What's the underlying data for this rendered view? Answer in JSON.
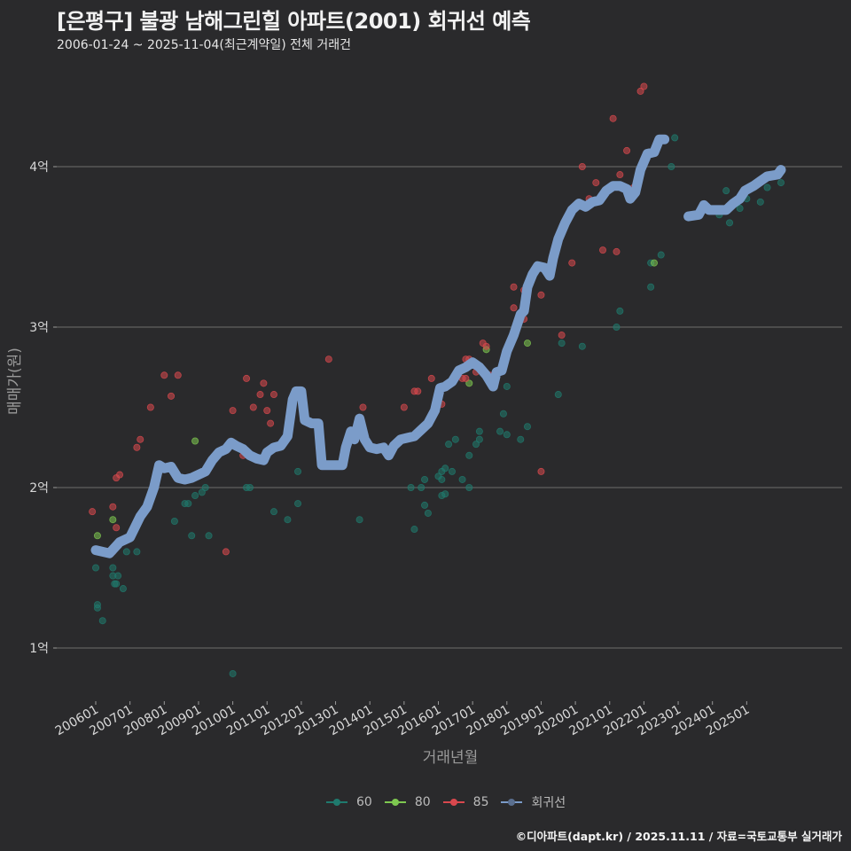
{
  "header": {
    "title": "[은평구] 불광 남해그린힐 아파트(2001) 회귀선 예측",
    "subtitle": "2006-01-24 ~ 2025-11-04(최근계약일) 전체 거래건"
  },
  "footer": {
    "credit": "©디아파트(dapt.kr) / 2025.11.11 / 자료=국토교통부 실거래가"
  },
  "legend": [
    {
      "label": "60",
      "color": "#1f7a6e"
    },
    {
      "label": "80",
      "color": "#7ec850"
    },
    {
      "label": "85",
      "color": "#d9484e"
    },
    {
      "label": "회귀선",
      "color": "#7b9cc9"
    }
  ],
  "chart_data": {
    "type": "scatter",
    "title": "[은평구] 불광 남해그린힐 아파트(2001) 회귀선 예측",
    "subtitle": "2006-01-24 ~ 2025-11-04(최근계약일) 전체 거래건",
    "xlabel": "거래년월",
    "ylabel": "매매가(원)",
    "x_ticks": [
      "200601",
      "200701",
      "200801",
      "200901",
      "201001",
      "201101",
      "201201",
      "201301",
      "201401",
      "201501",
      "201601",
      "201701",
      "201801",
      "201901",
      "202001",
      "202101",
      "202201",
      "202301",
      "202401",
      "202501"
    ],
    "y_ticks": [
      "1억",
      "2억",
      "3억",
      "4억"
    ],
    "y_tick_values": [
      1,
      2,
      3,
      4
    ],
    "ylim": [
      0.7,
      4.8
    ],
    "xlim": [
      2005.5,
      2026.2
    ],
    "grid": "horizontal",
    "legend_position": "bottom",
    "series": [
      {
        "name": "60",
        "color": "#1f7a6e",
        "points": [
          [
            2006.0,
            1.5
          ],
          [
            2006.05,
            1.27
          ],
          [
            2006.05,
            1.25
          ],
          [
            2006.2,
            1.17
          ],
          [
            2006.5,
            1.5
          ],
          [
            2006.5,
            1.45
          ],
          [
            2006.55,
            1.4
          ],
          [
            2006.65,
            1.45
          ],
          [
            2006.6,
            1.4
          ],
          [
            2006.8,
            1.37
          ],
          [
            2006.9,
            1.6
          ],
          [
            2007.2,
            1.6
          ],
          [
            2008.3,
            1.79
          ],
          [
            2008.6,
            1.9
          ],
          [
            2008.7,
            1.9
          ],
          [
            2008.8,
            1.7
          ],
          [
            2008.9,
            1.95
          ],
          [
            2009.1,
            1.97
          ],
          [
            2009.2,
            2.0
          ],
          [
            2009.3,
            1.7
          ],
          [
            2010.0,
            0.84
          ],
          [
            2010.4,
            2.0
          ],
          [
            2010.5,
            2.0
          ],
          [
            2011.2,
            1.85
          ],
          [
            2011.6,
            1.8
          ],
          [
            2011.9,
            1.9
          ],
          [
            2011.9,
            2.1
          ],
          [
            2013.7,
            1.8
          ],
          [
            2015.2,
            2.0
          ],
          [
            2015.3,
            1.74
          ],
          [
            2015.5,
            2.0
          ],
          [
            2015.6,
            1.89
          ],
          [
            2015.6,
            2.05
          ],
          [
            2015.7,
            1.84
          ],
          [
            2016.0,
            2.07
          ],
          [
            2016.1,
            2.1
          ],
          [
            2016.1,
            2.05
          ],
          [
            2016.1,
            1.95
          ],
          [
            2016.2,
            2.12
          ],
          [
            2016.2,
            1.96
          ],
          [
            2016.3,
            2.27
          ],
          [
            2016.4,
            2.1
          ],
          [
            2016.5,
            2.3
          ],
          [
            2016.7,
            2.05
          ],
          [
            2016.9,
            2.0
          ],
          [
            2016.9,
            2.2
          ],
          [
            2017.1,
            2.27
          ],
          [
            2017.2,
            2.3
          ],
          [
            2017.2,
            2.35
          ],
          [
            2017.8,
            2.35
          ],
          [
            2017.9,
            2.46
          ],
          [
            2018.0,
            2.33
          ],
          [
            2018.0,
            2.63
          ],
          [
            2018.4,
            2.3
          ],
          [
            2018.6,
            2.38
          ],
          [
            2019.5,
            2.58
          ],
          [
            2019.6,
            2.9
          ],
          [
            2020.2,
            2.88
          ],
          [
            2021.2,
            3.0
          ],
          [
            2021.3,
            3.1
          ],
          [
            2022.2,
            3.25
          ],
          [
            2022.2,
            3.4
          ],
          [
            2022.5,
            3.45
          ],
          [
            2022.8,
            4.0
          ],
          [
            2022.9,
            4.18
          ],
          [
            2024.2,
            3.7
          ],
          [
            2024.4,
            3.85
          ],
          [
            2024.5,
            3.65
          ],
          [
            2024.8,
            3.74
          ],
          [
            2025.0,
            3.8
          ],
          [
            2025.2,
            3.87
          ],
          [
            2025.4,
            3.78
          ],
          [
            2025.6,
            3.87
          ],
          [
            2026.0,
            3.9
          ]
        ]
      },
      {
        "name": "80",
        "color": "#7ec850",
        "points": [
          [
            2006.05,
            1.7
          ],
          [
            2006.5,
            1.8
          ],
          [
            2008.9,
            2.29
          ],
          [
            2016.9,
            2.65
          ],
          [
            2017.4,
            2.86
          ],
          [
            2018.6,
            2.9
          ],
          [
            2022.3,
            3.4
          ]
        ]
      },
      {
        "name": "85",
        "color": "#d9484e",
        "points": [
          [
            2005.9,
            1.85
          ],
          [
            2006.5,
            1.88
          ],
          [
            2006.6,
            2.06
          ],
          [
            2006.7,
            2.08
          ],
          [
            2006.5,
            1.6
          ],
          [
            2006.6,
            1.75
          ],
          [
            2007.2,
            2.25
          ],
          [
            2007.3,
            2.3
          ],
          [
            2007.6,
            2.5
          ],
          [
            2008.0,
            2.7
          ],
          [
            2008.2,
            2.57
          ],
          [
            2008.4,
            2.7
          ],
          [
            2009.8,
            1.6
          ],
          [
            2010.0,
            2.48
          ],
          [
            2010.3,
            2.2
          ],
          [
            2010.4,
            2.68
          ],
          [
            2010.6,
            2.5
          ],
          [
            2010.8,
            2.58
          ],
          [
            2010.9,
            2.65
          ],
          [
            2011.0,
            2.48
          ],
          [
            2011.2,
            2.58
          ],
          [
            2011.1,
            2.4
          ],
          [
            2012.8,
            2.8
          ],
          [
            2013.8,
            2.5
          ],
          [
            2015.0,
            2.5
          ],
          [
            2015.3,
            2.6
          ],
          [
            2015.4,
            2.6
          ],
          [
            2015.8,
            2.68
          ],
          [
            2016.1,
            2.52
          ],
          [
            2016.7,
            2.68
          ],
          [
            2016.8,
            2.8
          ],
          [
            2016.9,
            2.8
          ],
          [
            2016.8,
            2.68
          ],
          [
            2017.1,
            2.72
          ],
          [
            2017.3,
            2.9
          ],
          [
            2017.5,
            2.7
          ],
          [
            2017.4,
            2.88
          ],
          [
            2018.2,
            3.12
          ],
          [
            2018.2,
            3.25
          ],
          [
            2018.5,
            3.05
          ],
          [
            2018.5,
            3.23
          ],
          [
            2019.0,
            2.1
          ],
          [
            2019.0,
            3.2
          ],
          [
            2019.6,
            2.95
          ],
          [
            2019.9,
            3.4
          ],
          [
            2020.2,
            4.0
          ],
          [
            2020.4,
            3.8
          ],
          [
            2020.6,
            3.9
          ],
          [
            2020.8,
            3.48
          ],
          [
            2021.1,
            4.3
          ],
          [
            2021.2,
            3.47
          ],
          [
            2021.3,
            3.95
          ],
          [
            2021.5,
            4.1
          ],
          [
            2021.7,
            3.87
          ],
          [
            2021.9,
            4.47
          ],
          [
            2022.0,
            4.5
          ]
        ]
      },
      {
        "name": "회귀선",
        "color": "#7b9cc9",
        "type": "line",
        "points": [
          [
            2006.0,
            1.61
          ],
          [
            2006.4,
            1.59
          ],
          [
            2006.7,
            1.66
          ],
          [
            2007.0,
            1.69
          ],
          [
            2007.3,
            1.82
          ],
          [
            2007.5,
            1.88
          ],
          [
            2007.7,
            2.0
          ],
          [
            2007.85,
            2.14
          ],
          [
            2008.0,
            2.12
          ],
          [
            2008.2,
            2.13
          ],
          [
            2008.4,
            2.06
          ],
          [
            2008.6,
            2.05
          ],
          [
            2008.8,
            2.06
          ],
          [
            2009.0,
            2.08
          ],
          [
            2009.2,
            2.1
          ],
          [
            2009.4,
            2.17
          ],
          [
            2009.6,
            2.22
          ],
          [
            2009.8,
            2.24
          ],
          [
            2009.95,
            2.28
          ],
          [
            2010.1,
            2.26
          ],
          [
            2010.3,
            2.24
          ],
          [
            2010.5,
            2.2
          ],
          [
            2010.7,
            2.18
          ],
          [
            2010.9,
            2.17
          ],
          [
            2011.0,
            2.22
          ],
          [
            2011.2,
            2.25
          ],
          [
            2011.4,
            2.26
          ],
          [
            2011.6,
            2.32
          ],
          [
            2011.75,
            2.55
          ],
          [
            2011.85,
            2.6
          ],
          [
            2012.0,
            2.6
          ],
          [
            2012.1,
            2.42
          ],
          [
            2012.3,
            2.4
          ],
          [
            2012.5,
            2.4
          ],
          [
            2012.6,
            2.14
          ],
          [
            2012.9,
            2.14
          ],
          [
            2013.2,
            2.14
          ],
          [
            2013.3,
            2.25
          ],
          [
            2013.45,
            2.35
          ],
          [
            2013.55,
            2.3
          ],
          [
            2013.7,
            2.43
          ],
          [
            2013.85,
            2.3
          ],
          [
            2014.0,
            2.25
          ],
          [
            2014.2,
            2.24
          ],
          [
            2014.4,
            2.25
          ],
          [
            2014.55,
            2.2
          ],
          [
            2014.7,
            2.26
          ],
          [
            2014.9,
            2.3
          ],
          [
            2015.1,
            2.31
          ],
          [
            2015.3,
            2.32
          ],
          [
            2015.5,
            2.36
          ],
          [
            2015.7,
            2.4
          ],
          [
            2015.9,
            2.48
          ],
          [
            2016.05,
            2.62
          ],
          [
            2016.2,
            2.63
          ],
          [
            2016.4,
            2.66
          ],
          [
            2016.6,
            2.73
          ],
          [
            2016.8,
            2.75
          ],
          [
            2017.0,
            2.78
          ],
          [
            2017.2,
            2.75
          ],
          [
            2017.4,
            2.7
          ],
          [
            2017.6,
            2.63
          ],
          [
            2017.7,
            2.72
          ],
          [
            2017.85,
            2.73
          ],
          [
            2018.0,
            2.85
          ],
          [
            2018.2,
            2.95
          ],
          [
            2018.4,
            3.08
          ],
          [
            2018.5,
            3.1
          ],
          [
            2018.6,
            3.25
          ],
          [
            2018.75,
            3.33
          ],
          [
            2018.9,
            3.38
          ],
          [
            2019.1,
            3.37
          ],
          [
            2019.25,
            3.32
          ],
          [
            2019.35,
            3.43
          ],
          [
            2019.5,
            3.55
          ],
          [
            2019.7,
            3.65
          ],
          [
            2019.9,
            3.73
          ],
          [
            2020.1,
            3.77
          ],
          [
            2020.3,
            3.75
          ],
          [
            2020.5,
            3.78
          ],
          [
            2020.7,
            3.79
          ],
          [
            2020.9,
            3.85
          ],
          [
            2021.1,
            3.88
          ],
          [
            2021.3,
            3.88
          ],
          [
            2021.5,
            3.86
          ],
          [
            2021.6,
            3.8
          ],
          [
            2021.75,
            3.84
          ],
          [
            2021.9,
            3.98
          ],
          [
            2022.1,
            4.08
          ],
          [
            2022.3,
            4.09
          ],
          [
            2022.45,
            4.17
          ],
          [
            2022.6,
            4.17
          ]
        ]
      },
      {
        "name": "회귀선-2",
        "color": "#7b9cc9",
        "type": "line",
        "points": [
          [
            2023.3,
            3.69
          ],
          [
            2023.6,
            3.7
          ],
          [
            2023.75,
            3.76
          ],
          [
            2023.9,
            3.73
          ],
          [
            2024.2,
            3.73
          ],
          [
            2024.4,
            3.73
          ],
          [
            2024.6,
            3.77
          ],
          [
            2024.8,
            3.8
          ],
          [
            2024.95,
            3.85
          ],
          [
            2025.2,
            3.88
          ],
          [
            2025.4,
            3.91
          ],
          [
            2025.6,
            3.94
          ],
          [
            2025.9,
            3.95
          ],
          [
            2026.0,
            3.98
          ]
        ]
      }
    ]
  }
}
